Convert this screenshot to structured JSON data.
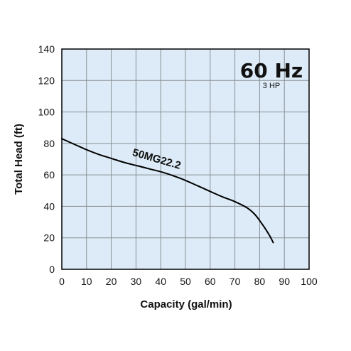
{
  "chart_data": {
    "type": "line",
    "title": "60 Hz",
    "subtitle": "3 HP",
    "xlabel": "Capacity (gal/min)",
    "ylabel": "Total Head (ft)",
    "xlim": [
      0,
      100
    ],
    "ylim": [
      0,
      140
    ],
    "x_ticks": [
      "0",
      "10",
      "20",
      "30",
      "40",
      "50",
      "60",
      "70",
      "80",
      "90",
      "100"
    ],
    "y_ticks": [
      "0",
      "20",
      "40",
      "60",
      "80",
      "100",
      "120",
      "140"
    ],
    "grid": true,
    "background_color": "#dcebf7",
    "grid_color": "#8a8f94",
    "line_color": "#000000",
    "series": [
      {
        "name": "50MG22.2",
        "x": [
          0,
          5,
          10,
          15,
          20,
          25,
          30,
          35,
          40,
          45,
          50,
          55,
          60,
          65,
          70,
          75,
          78,
          80,
          82,
          84,
          85.5
        ],
        "y": [
          83,
          79.5,
          76,
          73,
          70.5,
          68,
          66,
          64,
          62,
          59.5,
          56.5,
          53,
          49.5,
          46,
          43,
          39,
          35,
          31,
          26.5,
          21.5,
          17
        ]
      }
    ]
  }
}
